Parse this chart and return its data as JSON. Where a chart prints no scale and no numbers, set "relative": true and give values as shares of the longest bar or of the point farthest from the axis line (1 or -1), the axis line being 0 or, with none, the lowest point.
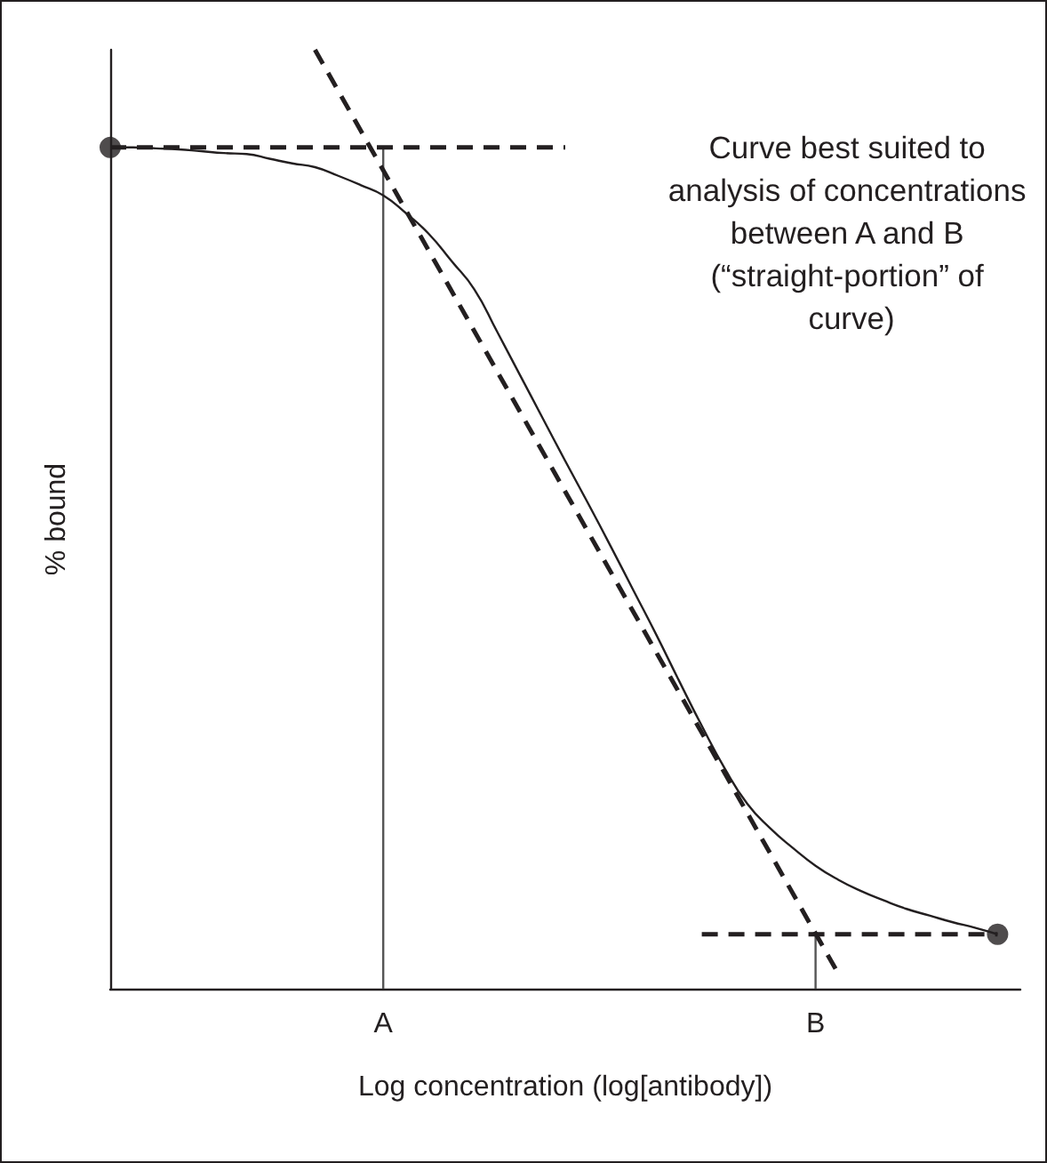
{
  "chart_data": {
    "type": "line",
    "relative": true,
    "xlabel": "Log concentration (log[antibody])",
    "ylabel": "% bound",
    "annotations": [
      "Curve best suited to analysis of concentrations between A and B (“straight-portion” of curve)"
    ],
    "categories": [
      null,
      null,
      null,
      null,
      null,
      null,
      null,
      null,
      null,
      null,
      null,
      null,
      "A",
      null,
      null,
      null,
      null,
      null,
      null,
      null,
      null,
      null,
      null,
      null,
      null,
      null,
      null,
      null,
      null,
      null,
      null,
      "B",
      null,
      null,
      null,
      null,
      null,
      null,
      null,
      null,
      null
    ],
    "grid": false,
    "tick_labels": "x",
    "series": [
      {
        "color": "#231f20",
        "line_style": "solid",
        "marker": "none",
        "values": [
          0.896,
          0.896,
          0.895,
          0.894,
          0.892,
          0.89,
          0.889,
          0.884,
          0.879,
          0.875,
          0.866,
          0.856,
          0.845,
          0.826,
          0.804,
          0.775,
          0.745,
          0.7,
          0.654,
          0.608,
          0.562,
          0.517,
          0.471,
          0.424,
          0.377,
          0.328,
          0.28,
          0.235,
          0.197,
          0.171,
          0.15,
          0.131,
          0.116,
          0.104,
          0.094,
          0.085,
          0.078,
          0.071,
          0.065,
          0.058,
          null
        ]
      },
      {
        "type": "scatter",
        "color": "#231f20",
        "marker": "circle",
        "values": [
          0.896,
          null,
          null,
          null,
          null,
          null,
          null,
          null,
          null,
          null,
          null,
          null,
          null,
          null,
          null,
          null,
          null,
          null,
          null,
          null,
          null,
          null,
          null,
          null,
          null,
          null,
          null,
          null,
          null,
          null,
          null,
          null,
          null,
          null,
          null,
          null,
          null,
          null,
          null,
          0.058,
          null
        ]
      },
      {
        "color": "#231f20",
        "line_style": "dashed",
        "marker": "none",
        "values": [
          null,
          null,
          null,
          null,
          null,
          null,
          null,
          null,
          null,
          1,
          null,
          null,
          null,
          null,
          null,
          null,
          null,
          null,
          null,
          null,
          null,
          null,
          null,
          null,
          null,
          null,
          null,
          null,
          null,
          null,
          null,
          null,
          0.016,
          null,
          null,
          null,
          null,
          null,
          null,
          null,
          null
        ]
      },
      {
        "color": "#231f20",
        "line_style": "dashed",
        "marker": "none",
        "values": [
          0.896,
          null,
          null,
          null,
          null,
          null,
          null,
          null,
          null,
          null,
          null,
          null,
          null,
          null,
          null,
          null,
          null,
          null,
          null,
          null,
          0.896,
          null,
          null,
          null,
          null,
          null,
          null,
          null,
          null,
          null,
          null,
          null,
          null,
          null,
          null,
          null,
          null,
          null,
          null,
          null,
          null
        ]
      },
      {
        "color": "#231f20",
        "line_style": "dashed",
        "marker": "none",
        "values": [
          null,
          null,
          null,
          null,
          null,
          null,
          null,
          null,
          null,
          null,
          null,
          null,
          null,
          null,
          null,
          null,
          null,
          null,
          null,
          null,
          null,
          null,
          null,
          null,
          null,
          null,
          0.058,
          null,
          null,
          null,
          null,
          null,
          null,
          null,
          null,
          null,
          null,
          null,
          null,
          0.058,
          null
        ]
      },
      {
        "type": "bar",
        "color": "#555555",
        "values": [
          null,
          null,
          null,
          null,
          null,
          null,
          null,
          null,
          null,
          null,
          null,
          null,
          0.896,
          null,
          null,
          null,
          null,
          null,
          null,
          null,
          null,
          null,
          null,
          null,
          null,
          null,
          null,
          null,
          null,
          null,
          null,
          0.058,
          null,
          null,
          null,
          null,
          null,
          null,
          null,
          null,
          null
        ]
      }
    ]
  }
}
